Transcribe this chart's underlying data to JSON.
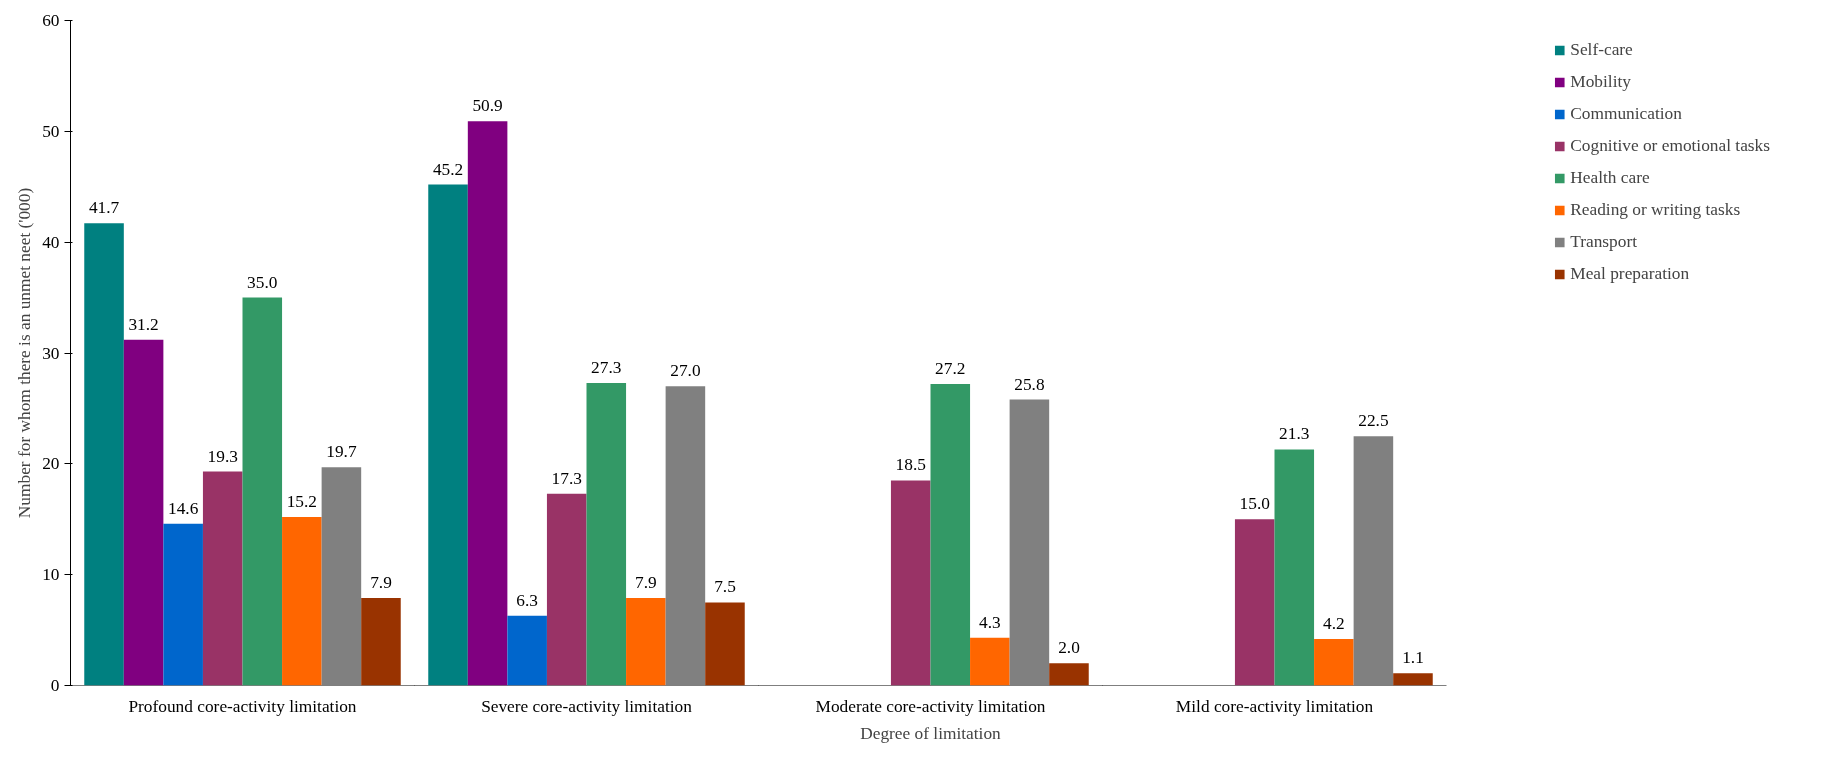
{
  "chart_data": {
    "type": "bar",
    "xlabel": "Degree of limitation",
    "ylabel": "Number for whom there is an unmet neet ('000)",
    "categories": [
      "Profound core-activity limitation",
      "Severe core-activity limitation",
      "Moderate core-activity limitation",
      "Mild core-activity limitation"
    ],
    "series": [
      {
        "name": "Self-care",
        "color": "#008080",
        "values": [
          41.7,
          45.2,
          null,
          null
        ],
        "value_labels": [
          "41.7",
          "45.2",
          null,
          null
        ]
      },
      {
        "name": "Mobility",
        "color": "#800080",
        "values": [
          31.2,
          50.9,
          null,
          null
        ],
        "value_labels": [
          "31.2",
          "50.9",
          null,
          null
        ]
      },
      {
        "name": "Communication",
        "color": "#0066cc",
        "values": [
          14.6,
          6.3,
          null,
          null
        ],
        "value_labels": [
          "14.6",
          "6.3",
          null,
          null
        ]
      },
      {
        "name": "Cognitive or emotional tasks",
        "color": "#993366",
        "values": [
          19.3,
          17.3,
          18.5,
          15.0
        ],
        "value_labels": [
          "19.3",
          "17.3",
          "18.5",
          "15.0"
        ]
      },
      {
        "name": "Health care",
        "color": "#339966",
        "values": [
          35.0,
          27.3,
          27.2,
          21.3
        ],
        "value_labels": [
          "35.0",
          "27.3",
          "27.2",
          "21.3"
        ]
      },
      {
        "name": "Reading or writing tasks",
        "color": "#ff6600",
        "values": [
          15.2,
          7.9,
          4.3,
          4.2
        ],
        "value_labels": [
          "15.2",
          "7.9",
          "4.3",
          "4.2"
        ]
      },
      {
        "name": "Transport",
        "color": "#808080",
        "values": [
          19.7,
          27.0,
          25.8,
          22.5
        ],
        "value_labels": [
          "19.7",
          "27.0",
          "25.8",
          "22.5"
        ]
      },
      {
        "name": "Meal preparation",
        "color": "#993300",
        "values": [
          7.9,
          7.5,
          2.0,
          1.1
        ],
        "value_labels": [
          "7.9",
          "7.5",
          "2.0",
          "1.1"
        ]
      }
    ],
    "ylim": [
      0,
      60
    ],
    "yticks": [
      0,
      10,
      20,
      30,
      40,
      50,
      60
    ],
    "grid": false,
    "legend": "right"
  }
}
